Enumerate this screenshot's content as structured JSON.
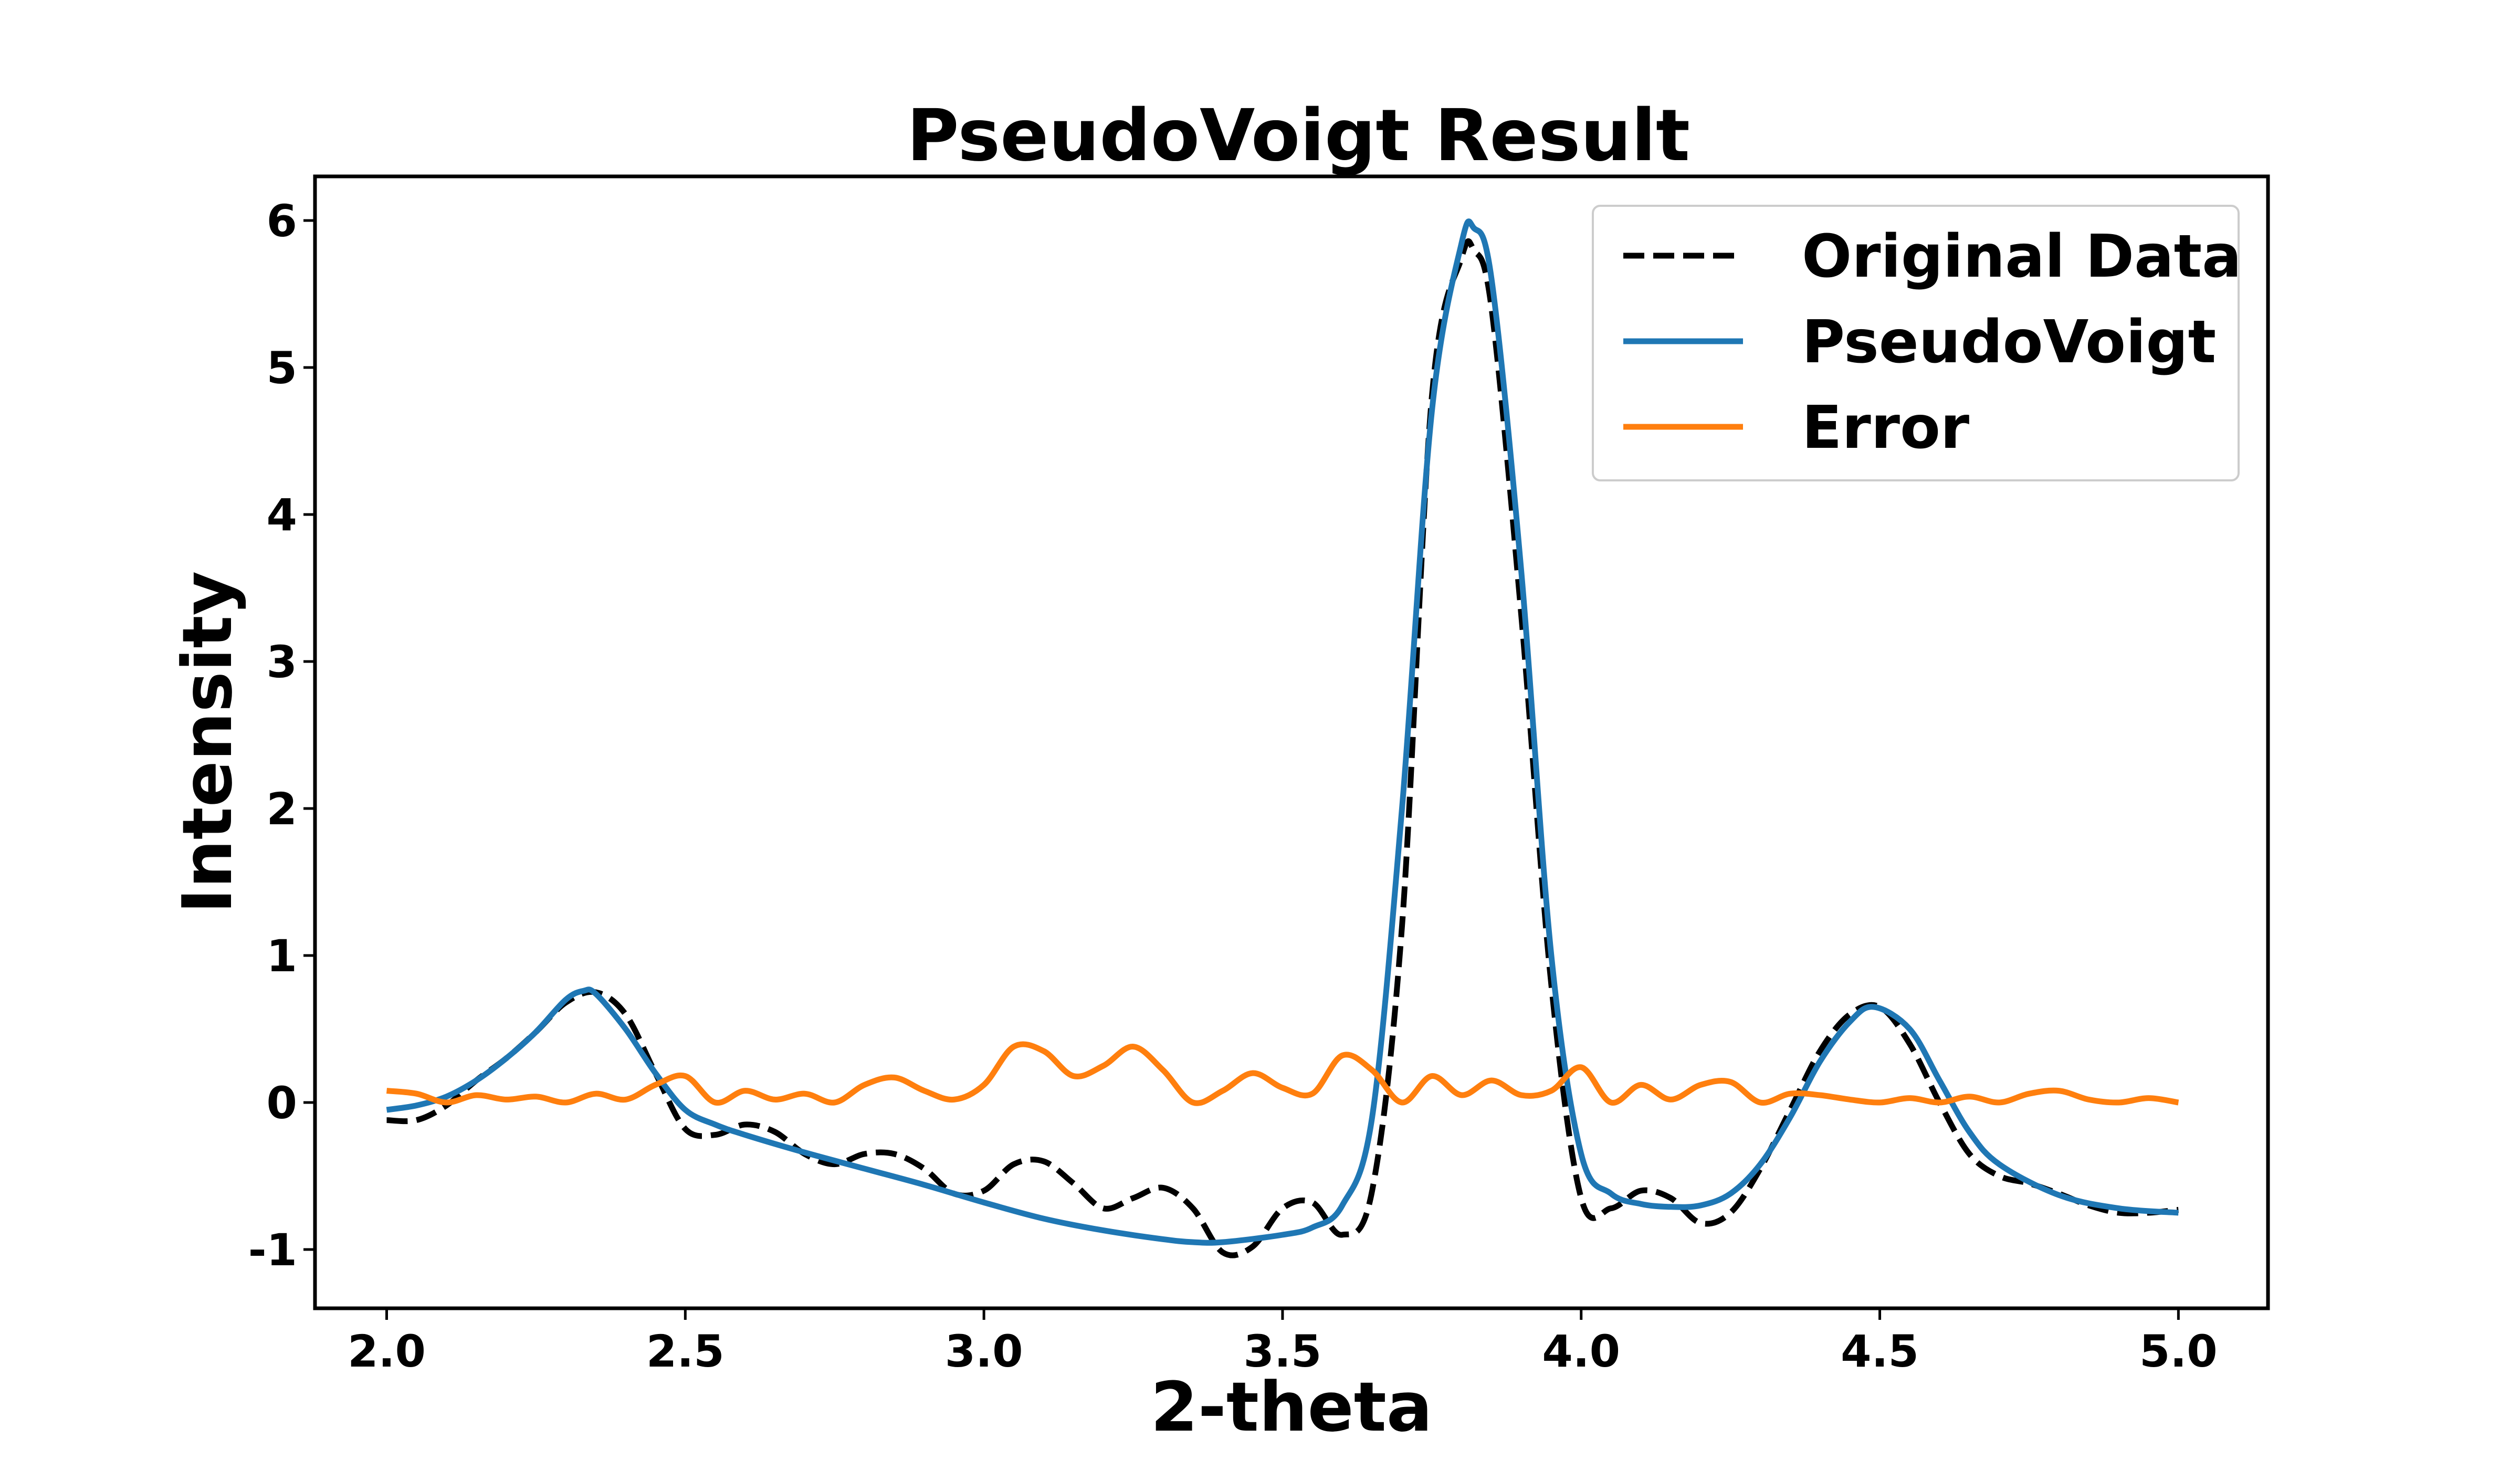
{
  "chart_data": {
    "type": "line",
    "title": "PseudoVoigt Result",
    "xlabel": "2-theta",
    "ylabel": "Intensity",
    "xlim": [
      1.88,
      5.15
    ],
    "ylim": [
      -1.4,
      6.3
    ],
    "x_ticks": [
      2.0,
      2.5,
      3.0,
      3.5,
      4.0,
      4.5,
      5.0
    ],
    "x_tick_labels": [
      "2.0",
      "2.5",
      "3.0",
      "3.5",
      "4.0",
      "4.5",
      "5.0"
    ],
    "y_ticks": [
      -1,
      0,
      1,
      2,
      3,
      4,
      5,
      6
    ],
    "y_tick_labels": [
      "-1",
      "0",
      "1",
      "2",
      "3",
      "4",
      "5",
      "6"
    ],
    "grid": false,
    "legend_position": "top-right",
    "series": [
      {
        "name": "Original Data",
        "color": "#000000",
        "style": "dashed",
        "x": [
          2.0,
          2.05,
          2.1,
          2.15,
          2.2,
          2.25,
          2.3,
          2.35,
          2.4,
          2.45,
          2.5,
          2.55,
          2.6,
          2.65,
          2.7,
          2.75,
          2.8,
          2.85,
          2.9,
          2.95,
          3.0,
          3.05,
          3.1,
          3.15,
          3.2,
          3.25,
          3.3,
          3.35,
          3.4,
          3.45,
          3.5,
          3.55,
          3.6,
          3.65,
          3.7,
          3.75,
          3.8,
          3.82,
          3.85,
          3.9,
          3.95,
          4.0,
          4.05,
          4.1,
          4.15,
          4.2,
          4.25,
          4.3,
          4.35,
          4.4,
          4.45,
          4.5,
          4.55,
          4.6,
          4.65,
          4.7,
          4.75,
          4.8,
          4.85,
          4.9,
          4.95,
          5.0
        ],
        "y": [
          -0.12,
          -0.12,
          -0.02,
          0.15,
          0.3,
          0.48,
          0.68,
          0.75,
          0.6,
          0.2,
          -0.18,
          -0.22,
          -0.15,
          -0.2,
          -0.35,
          -0.42,
          -0.35,
          -0.35,
          -0.45,
          -0.62,
          -0.6,
          -0.42,
          -0.4,
          -0.55,
          -0.72,
          -0.65,
          -0.58,
          -0.72,
          -1.02,
          -0.98,
          -0.72,
          -0.68,
          -0.9,
          -0.6,
          1.2,
          4.8,
          5.75,
          5.8,
          5.4,
          3.3,
          0.8,
          -0.65,
          -0.72,
          -0.6,
          -0.65,
          -0.82,
          -0.75,
          -0.45,
          -0.05,
          0.35,
          0.6,
          0.65,
          0.4,
          0.0,
          -0.35,
          -0.5,
          -0.55,
          -0.62,
          -0.7,
          -0.75,
          -0.75,
          -0.73
        ]
      },
      {
        "name": "PseudoVoigt",
        "color": "#1f77b4",
        "style": "solid",
        "x": [
          2.0,
          2.05,
          2.1,
          2.15,
          2.2,
          2.25,
          2.3,
          2.33,
          2.35,
          2.4,
          2.45,
          2.5,
          2.55,
          2.6,
          2.7,
          2.8,
          2.9,
          3.0,
          3.1,
          3.2,
          3.3,
          3.35,
          3.4,
          3.5,
          3.55,
          3.6,
          3.65,
          3.7,
          3.75,
          3.8,
          3.82,
          3.85,
          3.9,
          3.95,
          4.0,
          4.05,
          4.1,
          4.15,
          4.2,
          4.25,
          4.3,
          4.35,
          4.4,
          4.45,
          4.49,
          4.55,
          4.6,
          4.65,
          4.7,
          4.8,
          4.9,
          5.0
        ],
        "y": [
          -0.05,
          -0.02,
          0.04,
          0.15,
          0.3,
          0.48,
          0.7,
          0.76,
          0.74,
          0.5,
          0.2,
          -0.05,
          -0.15,
          -0.22,
          -0.34,
          -0.45,
          -0.56,
          -0.68,
          -0.79,
          -0.87,
          -0.93,
          -0.95,
          -0.95,
          -0.9,
          -0.85,
          -0.7,
          -0.1,
          2.0,
          4.7,
          5.85,
          5.95,
          5.6,
          3.6,
          1.0,
          -0.35,
          -0.62,
          -0.69,
          -0.71,
          -0.7,
          -0.62,
          -0.42,
          -0.1,
          0.28,
          0.55,
          0.65,
          0.5,
          0.15,
          -0.2,
          -0.42,
          -0.63,
          -0.72,
          -0.75
        ]
      },
      {
        "name": "Error",
        "color": "#ff7f0e",
        "style": "solid",
        "x": [
          2.0,
          2.05,
          2.1,
          2.15,
          2.2,
          2.25,
          2.3,
          2.35,
          2.4,
          2.45,
          2.5,
          2.55,
          2.6,
          2.65,
          2.7,
          2.75,
          2.8,
          2.85,
          2.9,
          2.95,
          3.0,
          3.05,
          3.1,
          3.15,
          3.2,
          3.25,
          3.3,
          3.35,
          3.4,
          3.45,
          3.5,
          3.55,
          3.6,
          3.65,
          3.7,
          3.75,
          3.8,
          3.85,
          3.9,
          3.95,
          4.0,
          4.05,
          4.1,
          4.15,
          4.2,
          4.25,
          4.3,
          4.35,
          4.4,
          4.45,
          4.5,
          4.55,
          4.6,
          4.65,
          4.7,
          4.75,
          4.8,
          4.85,
          4.9,
          4.95,
          5.0
        ],
        "y": [
          0.08,
          0.06,
          0.0,
          0.05,
          0.02,
          0.04,
          0.0,
          0.06,
          0.02,
          0.12,
          0.18,
          0.0,
          0.08,
          0.02,
          0.06,
          0.0,
          0.12,
          0.17,
          0.08,
          0.02,
          0.12,
          0.38,
          0.35,
          0.18,
          0.25,
          0.38,
          0.22,
          0.0,
          0.08,
          0.2,
          0.1,
          0.06,
          0.32,
          0.22,
          0.0,
          0.18,
          0.05,
          0.15,
          0.05,
          0.08,
          0.24,
          0.0,
          0.12,
          0.02,
          0.12,
          0.14,
          0.0,
          0.06,
          0.05,
          0.02,
          0.0,
          0.03,
          0.0,
          0.04,
          0.0,
          0.06,
          0.08,
          0.02,
          0.0,
          0.03,
          0.0
        ]
      }
    ]
  }
}
